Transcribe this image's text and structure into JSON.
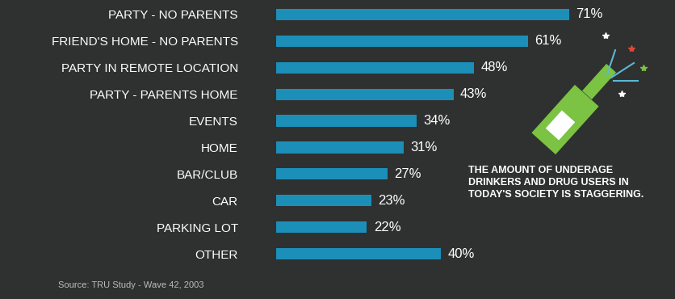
{
  "chart_data": {
    "type": "bar",
    "orientation": "horizontal",
    "categories": [
      "PARTY - NO PARENTS",
      "FRIEND'S HOME - NO PARENTS",
      "PARTY IN REMOTE LOCATION",
      "PARTY - PARENTS HOME",
      "EVENTS",
      "HOME",
      "BAR/CLUB",
      "CAR",
      "PARKING LOT",
      "OTHER"
    ],
    "values": [
      71,
      61,
      48,
      43,
      34,
      31,
      27,
      23,
      22,
      40
    ],
    "value_labels": [
      "71%",
      "61%",
      "48%",
      "43%",
      "34%",
      "31%",
      "27%",
      "23%",
      "22%",
      "40%"
    ],
    "color": "#1b8fb8",
    "data_labels": true,
    "tick_labels": "y",
    "grid": false,
    "annotation": "THE AMOUNT OF UNDERAGE DRINKERS AND DRUG USERS IN TODAY'S SOCIETY IS STAGGERING.",
    "source": "Source: TRU Study - Wave 42, 2003"
  }
}
